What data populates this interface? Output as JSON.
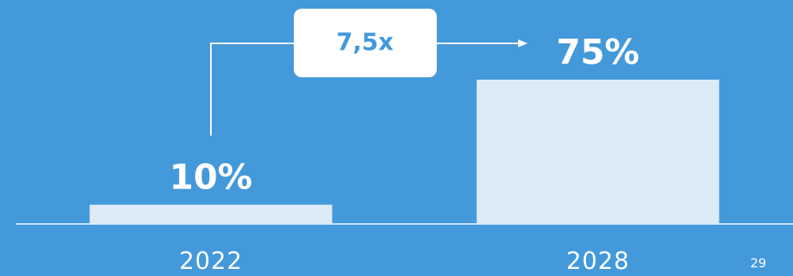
{
  "colors": {
    "background": "#4499DA",
    "bar": "#DDEBF6",
    "text": "#FFFFFF",
    "callout_box": "#FFFFFF",
    "callout_text": "#4499DA"
  },
  "chart_data": {
    "type": "bar",
    "categories": [
      "2022",
      "2028"
    ],
    "values": [
      10,
      75
    ],
    "data_labels": [
      "10%",
      "75%"
    ],
    "ylim": [
      0,
      100
    ],
    "grid": false,
    "annotations": [
      {
        "text": "7,5x",
        "from_category": "2022",
        "to_category": "2028"
      }
    ]
  },
  "page_number": "29"
}
